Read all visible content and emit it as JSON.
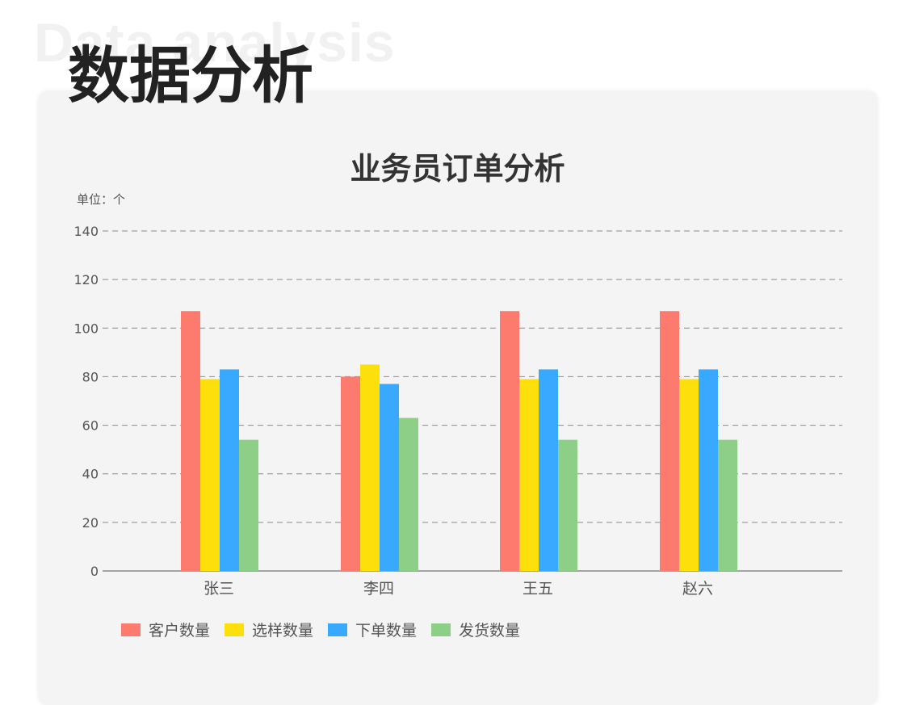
{
  "header": {
    "watermark": "Data analysis",
    "title": "数据分析"
  },
  "chart_data": {
    "type": "bar",
    "title": "业务员订单分析",
    "unit_label": "单位：个",
    "categories": [
      "张三",
      "李四",
      "王五",
      "赵六"
    ],
    "series": [
      {
        "name": "客户数量",
        "values": [
          107,
          80,
          107,
          107
        ],
        "color": "#fc7a6e"
      },
      {
        "name": "选样数量",
        "values": [
          79,
          85,
          79,
          79
        ],
        "color": "#fde00b"
      },
      {
        "name": "下单数量",
        "values": [
          83,
          77,
          83,
          83
        ],
        "color": "#39a9ff"
      },
      {
        "name": "发货数量",
        "values": [
          54,
          63,
          54,
          54
        ],
        "color": "#8ecf88"
      }
    ],
    "ylim": [
      0,
      140
    ],
    "yticks": [
      0,
      20,
      40,
      60,
      80,
      100,
      120,
      140
    ],
    "grid": true,
    "legend_position": "bottom-left"
  }
}
